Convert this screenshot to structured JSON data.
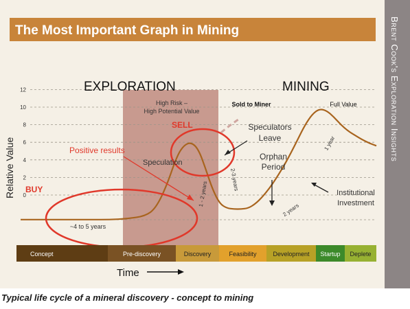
{
  "title": "The Most Important Graph in Mining",
  "side_title": "Brent Cook's Exploration Insights",
  "caption": "Typical life cycle of a mineral discovery - concept to mining",
  "colors": {
    "title_bar": "#c8843a",
    "side_bar": "#8c8585",
    "chart_bg": "#f5f0e6",
    "curve": "#a8641e",
    "highlight_zone": "#b87e72",
    "annotation_red": "#e0382a"
  },
  "chart_data": {
    "type": "line",
    "title": "",
    "xlabel": "Time",
    "ylabel": "Relative Value",
    "y_ticks": [
      "12",
      "10",
      "8",
      "6",
      "4",
      "2",
      "0"
    ],
    "ylim": [
      -3,
      12
    ],
    "x_axis_note": "conceptual time axis, no numeric x values",
    "grid": "dashed horizontal",
    "section_headers": [
      "EXPLORATION",
      "MINING"
    ],
    "phases": [
      {
        "label": "Concept",
        "color": "#5e3d14"
      },
      {
        "label": "Pre-discovery",
        "color": "#7a5224"
      },
      {
        "label": "Discovery",
        "color": "#c89a3a"
      },
      {
        "label": "Feasibility",
        "color": "#e2a12c"
      },
      {
        "label": "Development",
        "color": "#b7a126"
      },
      {
        "label": "Startup",
        "color": "#3c8a2a"
      },
      {
        "label": "Deplete",
        "color": "#97b132"
      }
    ],
    "series": [
      {
        "x": [
          0,
          5,
          10,
          15,
          20,
          25,
          30,
          35,
          38,
          41,
          44,
          46,
          48,
          50,
          52,
          54,
          56,
          58,
          60,
          62,
          64,
          66,
          68,
          70,
          72,
          74,
          76,
          78,
          80,
          82,
          84,
          86,
          88,
          90,
          92,
          94,
          96,
          98,
          100
        ],
        "values": [
          -2.8,
          -2.8,
          -2.8,
          -2.8,
          -2.8,
          -2.8,
          -2.7,
          -2.4,
          -1.5,
          1.0,
          4.5,
          5.7,
          6.0,
          5.2,
          3.0,
          0.6,
          -1.0,
          -1.5,
          -1.6,
          -1.6,
          -1.5,
          -1.0,
          -0.2,
          0.8,
          2.0,
          3.3,
          4.8,
          6.4,
          8.0,
          9.2,
          9.8,
          9.6,
          8.9,
          8.0,
          7.3,
          6.8,
          6.3,
          5.9,
          5.6
        ]
      }
    ],
    "annotations": [
      {
        "text": "High Risk –",
        "color": "#333333"
      },
      {
        "text": "High Potential Value",
        "color": "#333333"
      },
      {
        "text": "Sold to Miner",
        "color": "#111111"
      },
      {
        "text": "Full Value",
        "color": "#111111"
      },
      {
        "text": "SELL",
        "color": "#e0382a"
      },
      {
        "text": "Speculators",
        "color": "#333333"
      },
      {
        "text": "Leave",
        "color": "#333333"
      },
      {
        "text": "Positive results",
        "color": "#e0382a"
      },
      {
        "text": "Speculation",
        "color": "#333333"
      },
      {
        "text": "Orphan",
        "color": "#333333"
      },
      {
        "text": "Period",
        "color": "#333333"
      },
      {
        "text": "BUY",
        "color": "#e0382a"
      },
      {
        "text": "Institutional",
        "color": "#333333"
      },
      {
        "text": "Investment",
        "color": "#333333"
      },
      {
        "text": "~4 to 5 years",
        "color": "#333333"
      },
      {
        "text": "1 - 2 years",
        "color": "#333333"
      },
      {
        "text": "2-3 years",
        "color": "#333333"
      },
      {
        "text": "2 years",
        "color": "#333333"
      },
      {
        "text": "1 year",
        "color": "#333333"
      }
    ]
  }
}
